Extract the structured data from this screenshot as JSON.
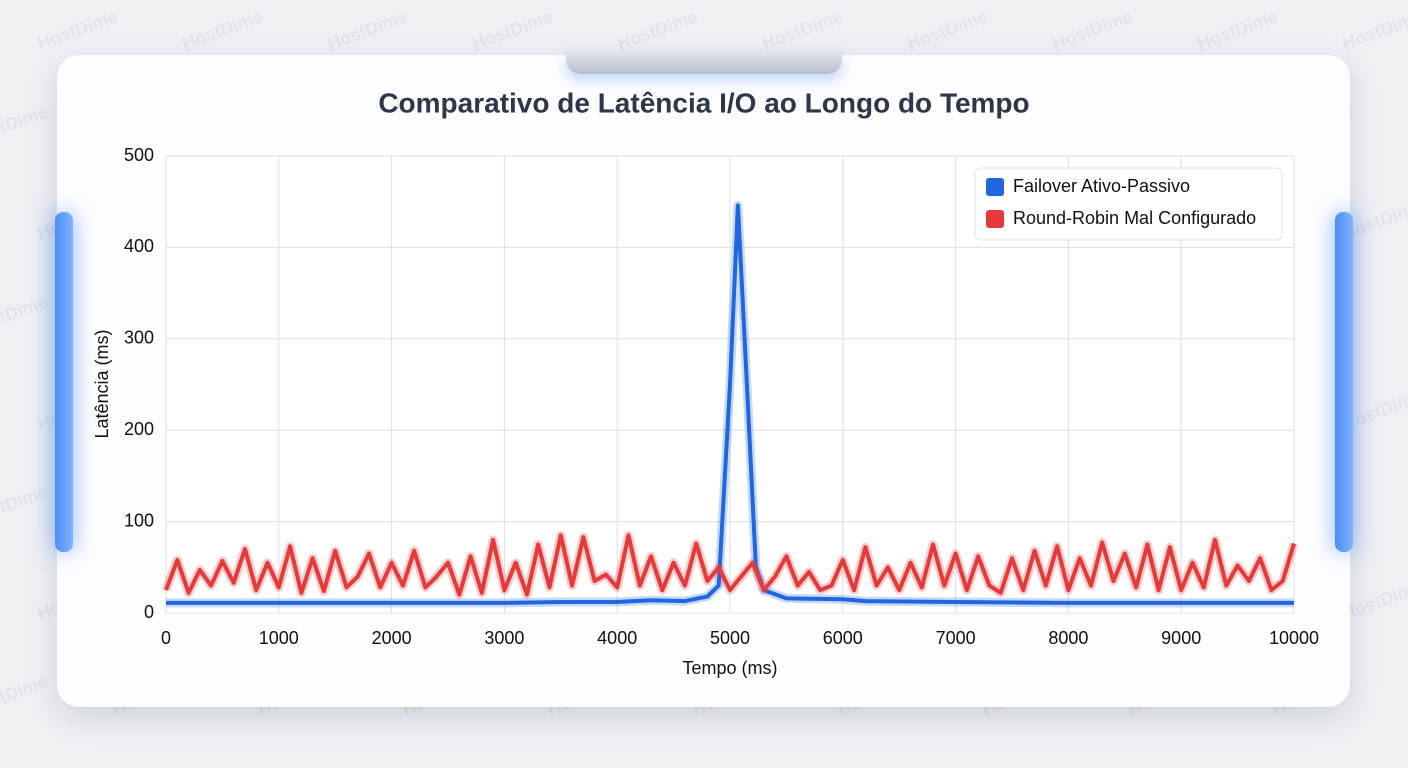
{
  "watermark": "HostDime",
  "chart_data": {
    "type": "line",
    "title": "Comparativo de Latência I/O ao Longo do Tempo",
    "x_label": "Tempo (ms)",
    "y_label": "Latência (ms)",
    "xlim": [
      0,
      10000
    ],
    "xticks": [
      0,
      1000,
      2000,
      3000,
      4000,
      5000,
      6000,
      7000,
      8000,
      9000,
      10000
    ],
    "ylim": [
      0,
      500
    ],
    "yticks": [
      0,
      100,
      200,
      300,
      400,
      500
    ],
    "grid": true,
    "legend": "upper right",
    "series": [
      {
        "name": "Failover Ativo-Passivo",
        "color": "#1f66e0",
        "x": [
          0,
          1000,
          2000,
          3000,
          3500,
          4000,
          4300,
          4600,
          4800,
          4900,
          5000,
          5070,
          5150,
          5230,
          5300,
          5500,
          6000,
          6200,
          7000,
          8000,
          9000,
          10000
        ],
        "values": [
          11,
          11,
          11,
          11,
          12,
          12,
          14,
          13,
          18,
          30,
          250,
          446,
          250,
          50,
          25,
          16,
          15,
          13,
          12,
          11,
          11,
          11
        ]
      },
      {
        "name": "Round-Robin Mal Configurado",
        "color": "#e63a3a",
        "x": [
          0,
          100,
          200,
          300,
          400,
          500,
          600,
          700,
          800,
          900,
          1000,
          1100,
          1200,
          1300,
          1400,
          1500,
          1600,
          1700,
          1800,
          1900,
          2000,
          2100,
          2200,
          2300,
          2400,
          2500,
          2600,
          2700,
          2800,
          2900,
          3000,
          3100,
          3200,
          3300,
          3400,
          3500,
          3600,
          3700,
          3800,
          3900,
          4000,
          4100,
          4200,
          4300,
          4400,
          4500,
          4600,
          4700,
          4800,
          4900,
          5000,
          5100,
          5200,
          5300,
          5400,
          5500,
          5600,
          5700,
          5800,
          5900,
          6000,
          6100,
          6200,
          6300,
          6400,
          6500,
          6600,
          6700,
          6800,
          6900,
          7000,
          7100,
          7200,
          7300,
          7400,
          7500,
          7600,
          7700,
          7800,
          7900,
          8000,
          8100,
          8200,
          8300,
          8400,
          8500,
          8600,
          8700,
          8800,
          8900,
          9000,
          9100,
          9200,
          9300,
          9400,
          9500,
          9600,
          9700,
          9800,
          9900,
          10000
        ],
        "values": [
          25,
          58,
          22,
          47,
          30,
          57,
          33,
          70,
          25,
          55,
          28,
          73,
          22,
          60,
          24,
          68,
          28,
          40,
          65,
          28,
          55,
          30,
          68,
          28,
          40,
          55,
          20,
          62,
          22,
          80,
          25,
          55,
          20,
          75,
          28,
          85,
          30,
          83,
          35,
          42,
          28,
          85,
          30,
          62,
          25,
          55,
          30,
          76,
          35,
          50,
          25,
          40,
          55,
          25,
          40,
          62,
          30,
          45,
          25,
          30,
          58,
          25,
          72,
          30,
          50,
          25,
          55,
          28,
          75,
          30,
          65,
          25,
          62,
          30,
          22,
          60,
          25,
          68,
          30,
          73,
          25,
          60,
          30,
          77,
          35,
          65,
          28,
          75,
          25,
          72,
          25,
          55,
          28,
          80,
          30,
          52,
          35,
          60,
          25,
          35,
          76
        ]
      }
    ]
  }
}
